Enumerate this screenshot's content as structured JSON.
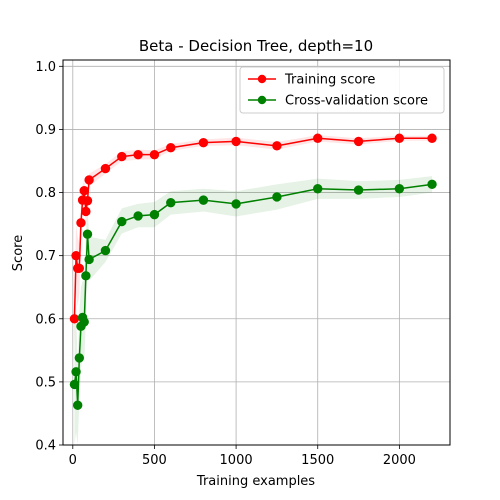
{
  "chart_data": {
    "type": "line",
    "title": "Beta - Decision Tree, depth=10",
    "xlabel": "Training examples",
    "ylabel": "Score",
    "xlim": [
      -60,
      2310
    ],
    "ylim": [
      0.4,
      1.01
    ],
    "grid": true,
    "legend_position": "top-right",
    "x_ticks": [
      0,
      500,
      1000,
      1500,
      2000
    ],
    "y_ticks": [
      0.4,
      0.5,
      0.6,
      0.7,
      0.8,
      0.9,
      1.0
    ],
    "series": [
      {
        "name": "Training score",
        "color": "#ff0000",
        "points": [
          {
            "x": 10,
            "y": 0.6
          },
          {
            "x": 20,
            "y": 0.7
          },
          {
            "x": 30,
            "y": 0.68
          },
          {
            "x": 40,
            "y": 0.68
          },
          {
            "x": 50,
            "y": 0.752
          },
          {
            "x": 60,
            "y": 0.788
          },
          {
            "x": 70,
            "y": 0.803
          },
          {
            "x": 80,
            "y": 0.77
          },
          {
            "x": 90,
            "y": 0.787
          },
          {
            "x": 100,
            "y": 0.82
          },
          {
            "x": 200,
            "y": 0.838
          },
          {
            "x": 300,
            "y": 0.857
          },
          {
            "x": 400,
            "y": 0.86
          },
          {
            "x": 500,
            "y": 0.86
          },
          {
            "x": 600,
            "y": 0.871
          },
          {
            "x": 800,
            "y": 0.879
          },
          {
            "x": 1000,
            "y": 0.881
          },
          {
            "x": 1250,
            "y": 0.874
          },
          {
            "x": 1500,
            "y": 0.886
          },
          {
            "x": 1750,
            "y": 0.881
          },
          {
            "x": 2000,
            "y": 0.886
          },
          {
            "x": 2200,
            "y": 0.886
          }
        ],
        "band": [
          {
            "x": 10,
            "lo": 0.56,
            "hi": 0.64
          },
          {
            "x": 20,
            "lo": 0.64,
            "hi": 0.75
          },
          {
            "x": 30,
            "lo": 0.62,
            "hi": 0.73
          },
          {
            "x": 40,
            "lo": 0.64,
            "hi": 0.72
          },
          {
            "x": 50,
            "lo": 0.72,
            "hi": 0.78
          },
          {
            "x": 60,
            "lo": 0.77,
            "hi": 0.81
          },
          {
            "x": 70,
            "lo": 0.79,
            "hi": 0.82
          },
          {
            "x": 80,
            "lo": 0.75,
            "hi": 0.79
          },
          {
            "x": 90,
            "lo": 0.77,
            "hi": 0.8
          },
          {
            "x": 100,
            "lo": 0.81,
            "hi": 0.83
          },
          {
            "x": 200,
            "lo": 0.83,
            "hi": 0.845
          },
          {
            "x": 300,
            "lo": 0.85,
            "hi": 0.865
          },
          {
            "x": 400,
            "lo": 0.852,
            "hi": 0.868
          },
          {
            "x": 500,
            "lo": 0.853,
            "hi": 0.867
          },
          {
            "x": 600,
            "lo": 0.866,
            "hi": 0.877
          },
          {
            "x": 800,
            "lo": 0.874,
            "hi": 0.884
          },
          {
            "x": 1000,
            "lo": 0.875,
            "hi": 0.887
          },
          {
            "x": 1250,
            "lo": 0.868,
            "hi": 0.88
          },
          {
            "x": 1500,
            "lo": 0.881,
            "hi": 0.891
          },
          {
            "x": 1750,
            "lo": 0.876,
            "hi": 0.886
          },
          {
            "x": 2000,
            "lo": 0.882,
            "hi": 0.89
          },
          {
            "x": 2200,
            "lo": 0.882,
            "hi": 0.89
          }
        ]
      },
      {
        "name": "Cross-validation score",
        "color": "#008000",
        "points": [
          {
            "x": 10,
            "y": 0.496
          },
          {
            "x": 20,
            "y": 0.516
          },
          {
            "x": 30,
            "y": 0.463
          },
          {
            "x": 40,
            "y": 0.538
          },
          {
            "x": 50,
            "y": 0.588
          },
          {
            "x": 60,
            "y": 0.602
          },
          {
            "x": 70,
            "y": 0.595
          },
          {
            "x": 80,
            "y": 0.668
          },
          {
            "x": 90,
            "y": 0.734
          },
          {
            "x": 100,
            "y": 0.694
          },
          {
            "x": 200,
            "y": 0.708
          },
          {
            "x": 300,
            "y": 0.754
          },
          {
            "x": 400,
            "y": 0.763
          },
          {
            "x": 500,
            "y": 0.765
          },
          {
            "x": 600,
            "y": 0.784
          },
          {
            "x": 800,
            "y": 0.788
          },
          {
            "x": 1000,
            "y": 0.782
          },
          {
            "x": 1250,
            "y": 0.793
          },
          {
            "x": 1500,
            "y": 0.806
          },
          {
            "x": 1750,
            "y": 0.804
          },
          {
            "x": 2000,
            "y": 0.806
          },
          {
            "x": 2200,
            "y": 0.813
          }
        ],
        "band": [
          {
            "x": 10,
            "lo": 0.4,
            "hi": 0.6
          },
          {
            "x": 20,
            "lo": 0.42,
            "hi": 0.61
          },
          {
            "x": 30,
            "lo": 0.4,
            "hi": 0.53
          },
          {
            "x": 40,
            "lo": 0.47,
            "hi": 0.61
          },
          {
            "x": 50,
            "lo": 0.52,
            "hi": 0.65
          },
          {
            "x": 60,
            "lo": 0.54,
            "hi": 0.66
          },
          {
            "x": 70,
            "lo": 0.53,
            "hi": 0.66
          },
          {
            "x": 80,
            "lo": 0.6,
            "hi": 0.73
          },
          {
            "x": 90,
            "lo": 0.68,
            "hi": 0.78
          },
          {
            "x": 100,
            "lo": 0.66,
            "hi": 0.73
          },
          {
            "x": 200,
            "lo": 0.69,
            "hi": 0.725
          },
          {
            "x": 300,
            "lo": 0.735,
            "hi": 0.775
          },
          {
            "x": 400,
            "lo": 0.745,
            "hi": 0.782
          },
          {
            "x": 500,
            "lo": 0.745,
            "hi": 0.785
          },
          {
            "x": 600,
            "lo": 0.765,
            "hi": 0.802
          },
          {
            "x": 800,
            "lo": 0.77,
            "hi": 0.806
          },
          {
            "x": 1000,
            "lo": 0.762,
            "hi": 0.802
          },
          {
            "x": 1250,
            "lo": 0.773,
            "hi": 0.813
          },
          {
            "x": 1500,
            "lo": 0.79,
            "hi": 0.822
          },
          {
            "x": 1750,
            "lo": 0.79,
            "hi": 0.818
          },
          {
            "x": 2000,
            "lo": 0.793,
            "hi": 0.82
          },
          {
            "x": 2200,
            "lo": 0.8,
            "hi": 0.826
          }
        ]
      }
    ]
  }
}
